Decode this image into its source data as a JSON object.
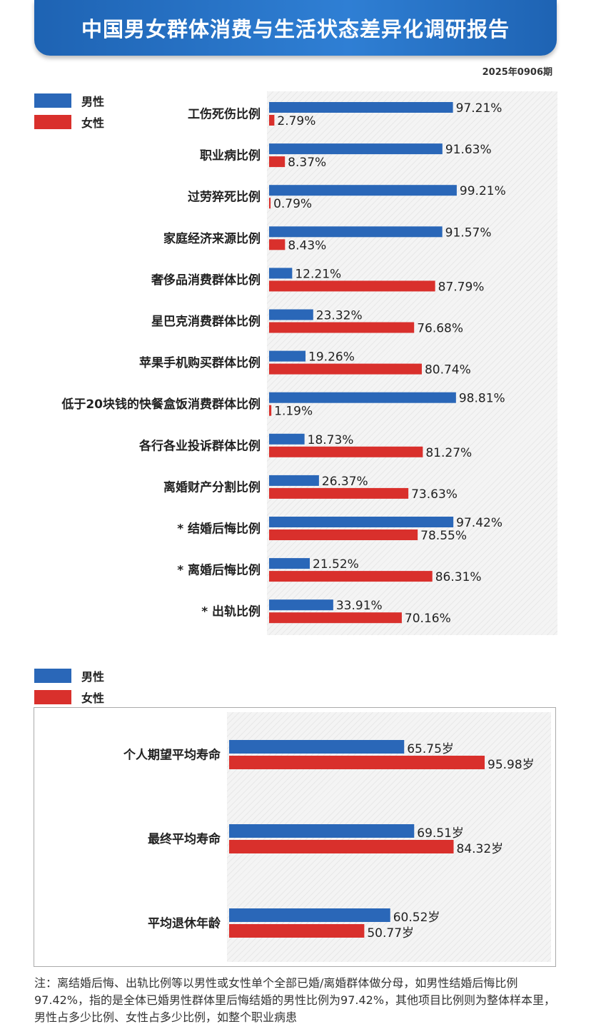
{
  "header": {
    "title": "中国男女群体消费与生活状态差异化调研报告",
    "issue": "2025年0906期"
  },
  "legend": {
    "male": "男性",
    "female": "女性"
  },
  "colors": {
    "male": "#2a67b8",
    "female": "#d9302c",
    "banner": "#1e63b3"
  },
  "chart_data": [
    {
      "type": "bar",
      "orientation": "horizontal",
      "unit": "%",
      "xlim": [
        0,
        100
      ],
      "categories": [
        "工伤死伤比例",
        "职业病比例",
        "过劳猝死比例",
        "家庭经济来源比例",
        "奢侈品消费群体比例",
        "星巴克消费群体比例",
        "苹果手机购买群体比例",
        "低于20块钱的快餐盒饭消费群体比例",
        "各行各业投诉群体比例",
        "离婚财产分割比例",
        "* 结婚后悔比例",
        "* 离婚后悔比例",
        "* 出轨比例"
      ],
      "series": [
        {
          "name": "男性",
          "values": [
            97.21,
            91.63,
            99.21,
            91.57,
            12.21,
            23.32,
            19.26,
            98.81,
            18.73,
            26.37,
            97.42,
            21.52,
            33.91
          ]
        },
        {
          "name": "女性",
          "values": [
            2.79,
            8.37,
            0.79,
            8.43,
            87.79,
            76.68,
            80.74,
            1.19,
            81.27,
            73.63,
            78.55,
            86.31,
            70.16
          ]
        }
      ],
      "legend": "top-left"
    },
    {
      "type": "bar",
      "orientation": "horizontal",
      "unit": "岁",
      "xlim": [
        0,
        100
      ],
      "categories": [
        "个人期望平均寿命",
        "最终平均寿命",
        "平均退休年龄"
      ],
      "series": [
        {
          "name": "男性",
          "values": [
            65.75,
            69.51,
            60.52
          ]
        },
        {
          "name": "女性",
          "values": [
            95.98,
            84.32,
            50.77
          ]
        }
      ],
      "legend": "top-left"
    }
  ],
  "note": "注：离结婚后悔、出轨比例等以男性或女性单个全部已婚/离婚群体做分母，如男性结婚后悔比例97.42%，指的是全体已婚男性群体里后悔结婚的男性比例为97.42%，其他项目比例则为整体样本里，男性占多少比例、女性占多少比例，如整个职业病患"
}
